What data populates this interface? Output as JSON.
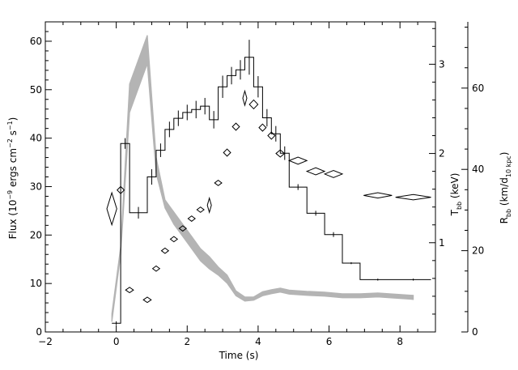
{
  "chart_data": {
    "type": "line",
    "title": "",
    "xlabel": "Time (s)",
    "ylabel_left": {
      "base": "Flux (10",
      "exp1": "−9",
      "mid": " ergs cm",
      "exp2": "−2",
      "mid2": " s",
      "exp3": "−1",
      "end": ")"
    },
    "ylabel_right_inner": {
      "base": "T",
      "sub": "bb",
      "rest": " (keV)"
    },
    "ylabel_right_outer": {
      "base": "R",
      "sub": "bb",
      "mid": " (km/d",
      "sub2": "10 kpc",
      "end": ")"
    },
    "xlim": [
      -2,
      9
    ],
    "ylim_flux": [
      0,
      64
    ],
    "ylim_temp": [
      0,
      3.475
    ],
    "ylim_radius": [
      0,
      76.3
    ],
    "x_ticks": [
      "−2",
      "0",
      "2",
      "4",
      "6",
      "8"
    ],
    "flux_ticks": [
      "0",
      "10",
      "20",
      "30",
      "40",
      "50",
      "60"
    ],
    "temp_ticks": [
      "1",
      "2",
      "3"
    ],
    "radius_ticks": [
      "0",
      "20",
      "40",
      "60"
    ],
    "colors": {
      "flux": "#000000",
      "radius_band": "#b4b4b4",
      "temperature": "#000000"
    },
    "series": [
      {
        "name": "flux",
        "style": "step",
        "axis": "left",
        "edges": [
          -0.125,
          0.125,
          0.375,
          0.875,
          1.125,
          1.375,
          1.625,
          1.875,
          2.125,
          2.375,
          2.625,
          2.875,
          3.125,
          3.375,
          3.625,
          3.875,
          4.125,
          4.375,
          4.625,
          4.875,
          5.375,
          5.875,
          6.375,
          6.875,
          7.875,
          8.875
        ],
        "values": [
          1.8,
          38.9,
          24.6,
          32,
          37.5,
          41.8,
          44.1,
          45.3,
          45.9,
          46.6,
          43.8,
          50.6,
          52.9,
          54.1,
          56.7,
          50.6,
          44.2,
          40.9,
          36.9,
          29.9,
          24.5,
          20.1,
          14.2,
          10.8,
          10.8
        ],
        "errors": [
          0.4,
          1.1,
          1.2,
          1.6,
          1.4,
          1.6,
          1.6,
          1.6,
          1.8,
          1.7,
          1.8,
          2.3,
          1.8,
          2.0,
          3.6,
          2.2,
          1.8,
          1.6,
          1.4,
          0.6,
          0.5,
          0.5,
          0.2,
          0.2,
          0.2
        ]
      },
      {
        "name": "temperature",
        "style": "diamonds",
        "axis": "inner-right",
        "points": [
          {
            "x": -0.125,
            "y": 1.38,
            "dx": 0.14,
            "dy": 0.18
          },
          {
            "x": 0.125,
            "y": 1.59,
            "dx": 0.1,
            "dy": 0.04
          },
          {
            "x": 0.375,
            "y": 0.47,
            "dx": 0.11,
            "dy": 0.03
          },
          {
            "x": 0.875,
            "y": 0.36,
            "dx": 0.11,
            "dy": 0.03
          },
          {
            "x": 1.125,
            "y": 0.71,
            "dx": 0.1,
            "dy": 0.03
          },
          {
            "x": 1.375,
            "y": 0.91,
            "dx": 0.1,
            "dy": 0.03
          },
          {
            "x": 1.625,
            "y": 1.04,
            "dx": 0.1,
            "dy": 0.03
          },
          {
            "x": 1.875,
            "y": 1.16,
            "dx": 0.1,
            "dy": 0.03
          },
          {
            "x": 2.125,
            "y": 1.27,
            "dx": 0.1,
            "dy": 0.03
          },
          {
            "x": 2.375,
            "y": 1.37,
            "dx": 0.1,
            "dy": 0.03
          },
          {
            "x": 2.625,
            "y": 1.42,
            "dx": 0.05,
            "dy": 0.08
          },
          {
            "x": 2.875,
            "y": 1.67,
            "dx": 0.1,
            "dy": 0.03
          },
          {
            "x": 3.125,
            "y": 2.01,
            "dx": 0.1,
            "dy": 0.04
          },
          {
            "x": 3.375,
            "y": 2.3,
            "dx": 0.1,
            "dy": 0.04
          },
          {
            "x": 3.625,
            "y": 2.62,
            "dx": 0.04,
            "dy": 0.08
          },
          {
            "x": 3.875,
            "y": 2.55,
            "dx": 0.12,
            "dy": 0.05
          },
          {
            "x": 4.125,
            "y": 2.29,
            "dx": 0.1,
            "dy": 0.04
          },
          {
            "x": 4.375,
            "y": 2.2,
            "dx": 0.1,
            "dy": 0.04
          },
          {
            "x": 4.625,
            "y": 2.0,
            "dx": 0.12,
            "dy": 0.04
          },
          {
            "x": 5.125,
            "y": 1.92,
            "dx": 0.25,
            "dy": 0.04
          },
          {
            "x": 5.625,
            "y": 1.8,
            "dx": 0.25,
            "dy": 0.04
          },
          {
            "x": 6.125,
            "y": 1.77,
            "dx": 0.25,
            "dy": 0.04
          },
          {
            "x": 7.375,
            "y": 1.53,
            "dx": 0.4,
            "dy": 0.03
          },
          {
            "x": 8.375,
            "y": 1.51,
            "dx": 0.5,
            "dy": 0.03
          }
        ]
      },
      {
        "name": "radius",
        "style": "band",
        "axis": "outer-right",
        "x": [
          -0.125,
          0.125,
          0.375,
          0.875,
          1.125,
          1.375,
          1.625,
          1.875,
          2.125,
          2.375,
          2.625,
          2.875,
          3.125,
          3.375,
          3.625,
          3.875,
          4.125,
          4.375,
          4.625,
          4.875,
          5.375,
          5.875,
          6.375,
          6.875,
          7.375,
          8.375
        ],
        "low": [
          2.5,
          19,
          54,
          66,
          39,
          30.5,
          26.5,
          23.5,
          20.5,
          17.5,
          15.5,
          14,
          12,
          8.9,
          7.6,
          7.8,
          8.9,
          9.4,
          9.8,
          9.3,
          9.0,
          8.8,
          8.4,
          8.4,
          8.6,
          8.0
        ],
        "high": [
          4.5,
          21,
          61,
          73,
          43,
          32.5,
          29.5,
          26.5,
          23.5,
          20.5,
          18.5,
          16,
          14,
          10.1,
          8.6,
          8.6,
          9.9,
          10.4,
          10.8,
          10.3,
          10.0,
          9.8,
          9.4,
          9.4,
          9.6,
          9.0
        ]
      }
    ]
  }
}
